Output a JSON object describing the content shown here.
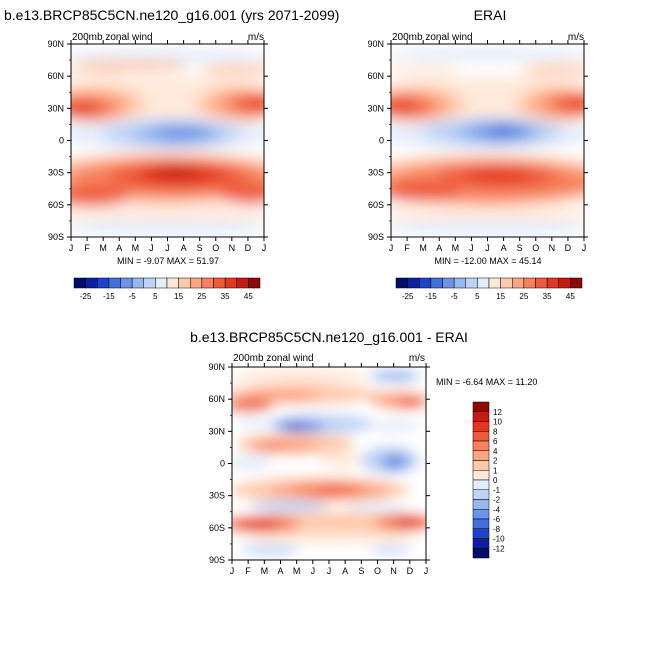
{
  "palette_warm": [
    "#ffe9da",
    "#ffc9ab",
    "#fca583",
    "#f7815c",
    "#ef5a3b",
    "#e2361f",
    "#c31c10",
    "#8e0a05"
  ],
  "palette_cool": [
    "#e4edfb",
    "#bfd3f6",
    "#99b7ef",
    "#6c94e6",
    "#416fdc",
    "#1b43cc",
    "#0a20a0",
    "#000e6b"
  ],
  "month_labels": [
    "J",
    "F",
    "M",
    "A",
    "M",
    "J",
    "J",
    "A",
    "S",
    "O",
    "N",
    "D",
    "J"
  ],
  "lat_labels": [
    "90N",
    "60N",
    "30N",
    "0",
    "30S",
    "60S",
    "90S"
  ],
  "chart_data": [
    {
      "type": "heatmap",
      "title": "b.e13.BRCP85C5CN.ne120_g16.001 (yrs 2071-2099)",
      "subtitle": "200mb zonal wind",
      "units": "m/s",
      "stats": "MIN = -9.07 MAX = 51.97",
      "x": [
        "J",
        "F",
        "M",
        "A",
        "M",
        "J",
        "J",
        "A",
        "S",
        "O",
        "N",
        "D",
        "J"
      ],
      "y": [
        "90N",
        "60N",
        "30N",
        "0",
        "30S",
        "60S",
        "90S"
      ],
      "ylim": [
        "90S",
        "90N"
      ],
      "levels": [
        -25,
        -20,
        -15,
        -10,
        -5,
        0,
        5,
        10,
        15,
        20,
        25,
        30,
        35,
        40,
        45
      ],
      "colorbar_labels": [
        "-25",
        "-15",
        "-5",
        "5",
        "15",
        "25",
        "35",
        "45"
      ],
      "colorbar_position": "bottom"
    },
    {
      "type": "heatmap",
      "title": "ERAI",
      "subtitle": "200mb zonal wind",
      "units": "m/s",
      "stats": "MIN = -12.00 MAX = 45.14",
      "x": [
        "J",
        "F",
        "M",
        "A",
        "M",
        "J",
        "J",
        "A",
        "S",
        "O",
        "N",
        "D",
        "J"
      ],
      "y": [
        "90N",
        "60N",
        "30N",
        "0",
        "30S",
        "60S",
        "90S"
      ],
      "ylim": [
        "90S",
        "90N"
      ],
      "levels": [
        -25,
        -20,
        -15,
        -10,
        -5,
        0,
        5,
        10,
        15,
        20,
        25,
        30,
        35,
        40,
        45
      ],
      "colorbar_labels": [
        "-25",
        "-15",
        "-5",
        "5",
        "15",
        "25",
        "35",
        "45"
      ],
      "colorbar_position": "bottom"
    },
    {
      "type": "heatmap",
      "title": "b.e13.BRCP85C5CN.ne120_g16.001 - ERAI",
      "subtitle": "200mb zonal wind",
      "units": "m/s",
      "stats": "MIN = -6.64 MAX = 11.20",
      "x": [
        "J",
        "F",
        "M",
        "A",
        "M",
        "J",
        "J",
        "A",
        "S",
        "O",
        "N",
        "D",
        "J"
      ],
      "y": [
        "90N",
        "60N",
        "30N",
        "0",
        "30S",
        "60S",
        "90S"
      ],
      "ylim": [
        "90S",
        "90N"
      ],
      "levels": [
        -12,
        -10,
        -8,
        -6,
        -4,
        -2,
        -1,
        0,
        1,
        2,
        4,
        6,
        8,
        10,
        12
      ],
      "colorbar_labels": [
        "12",
        "10",
        "8",
        "6",
        "4",
        "2",
        "1",
        "0",
        "-1",
        "-2",
        "-4",
        "-6",
        "-8",
        "-10",
        "-12"
      ],
      "colorbar_position": "right"
    }
  ]
}
